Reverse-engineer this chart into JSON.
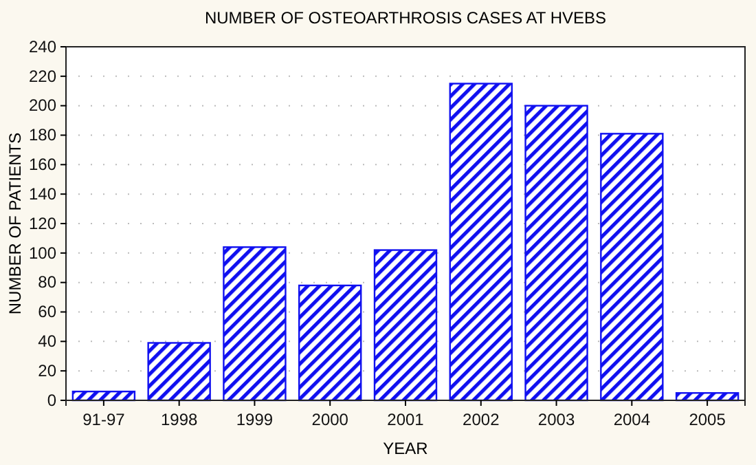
{
  "chart_data": {
    "type": "bar",
    "title": "NUMBER OF OSTEOARTHROSIS CASES AT HVEBS",
    "xlabel": "YEAR",
    "ylabel": "NUMBER OF PATIENTS",
    "categories": [
      "91-97",
      "1998",
      "1999",
      "2000",
      "2001",
      "2002",
      "2003",
      "2004",
      "2005"
    ],
    "values": [
      6,
      39,
      104,
      78,
      102,
      215,
      200,
      181,
      5
    ],
    "color": "#1010f0",
    "ylim": [
      0,
      240
    ],
    "yticks": [
      0,
      20,
      40,
      60,
      80,
      100,
      120,
      140,
      160,
      180,
      200,
      220,
      240
    ],
    "grid": "y"
  }
}
